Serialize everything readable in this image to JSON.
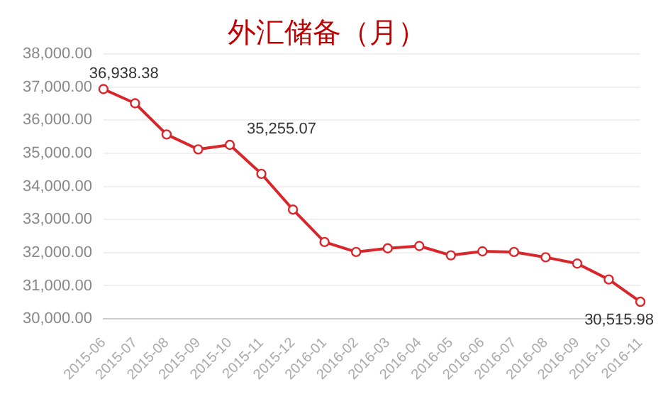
{
  "chart_data": {
    "type": "line",
    "title": "外汇储备（月）",
    "categories": [
      "2015-06",
      "2015-07",
      "2015-08",
      "2015-09",
      "2015-10",
      "2015-11",
      "2015-12",
      "2016-01",
      "2016-02",
      "2016-03",
      "2016-04",
      "2016-05",
      "2016-06",
      "2016-07",
      "2016-08",
      "2016-09",
      "2016-10",
      "2016-11"
    ],
    "series": [
      {
        "color": "#d9262a",
        "values": [
          36938.38,
          36510,
          35570,
          35120,
          35255.07,
          34380,
          33300,
          32320,
          32020,
          32130,
          32200,
          31920,
          32040,
          32020,
          31860,
          31670,
          31190,
          30515.98
        ],
        "value_labels": [
          "36,938.38",
          null,
          null,
          null,
          "35,255.07",
          null,
          null,
          null,
          null,
          null,
          null,
          null,
          null,
          null,
          null,
          null,
          null,
          "30,515.98"
        ]
      }
    ],
    "ylim": [
      30000,
      38000
    ],
    "yticks": [
      {
        "value": 30000,
        "label": "30,000.00"
      },
      {
        "value": 31000,
        "label": "31,000.00"
      },
      {
        "value": 32000,
        "label": "32,000.00"
      },
      {
        "value": 33000,
        "label": "33,000.00"
      },
      {
        "value": 34000,
        "label": "34,000.00"
      },
      {
        "value": 35000,
        "label": "35,000.00"
      },
      {
        "value": 36000,
        "label": "36,000.00"
      },
      {
        "value": 37000,
        "label": "37,000.00"
      },
      {
        "value": 38000,
        "label": "38,000.00"
      }
    ],
    "grid": "y",
    "legend": false,
    "marker": "circle",
    "line_style": "solid"
  }
}
